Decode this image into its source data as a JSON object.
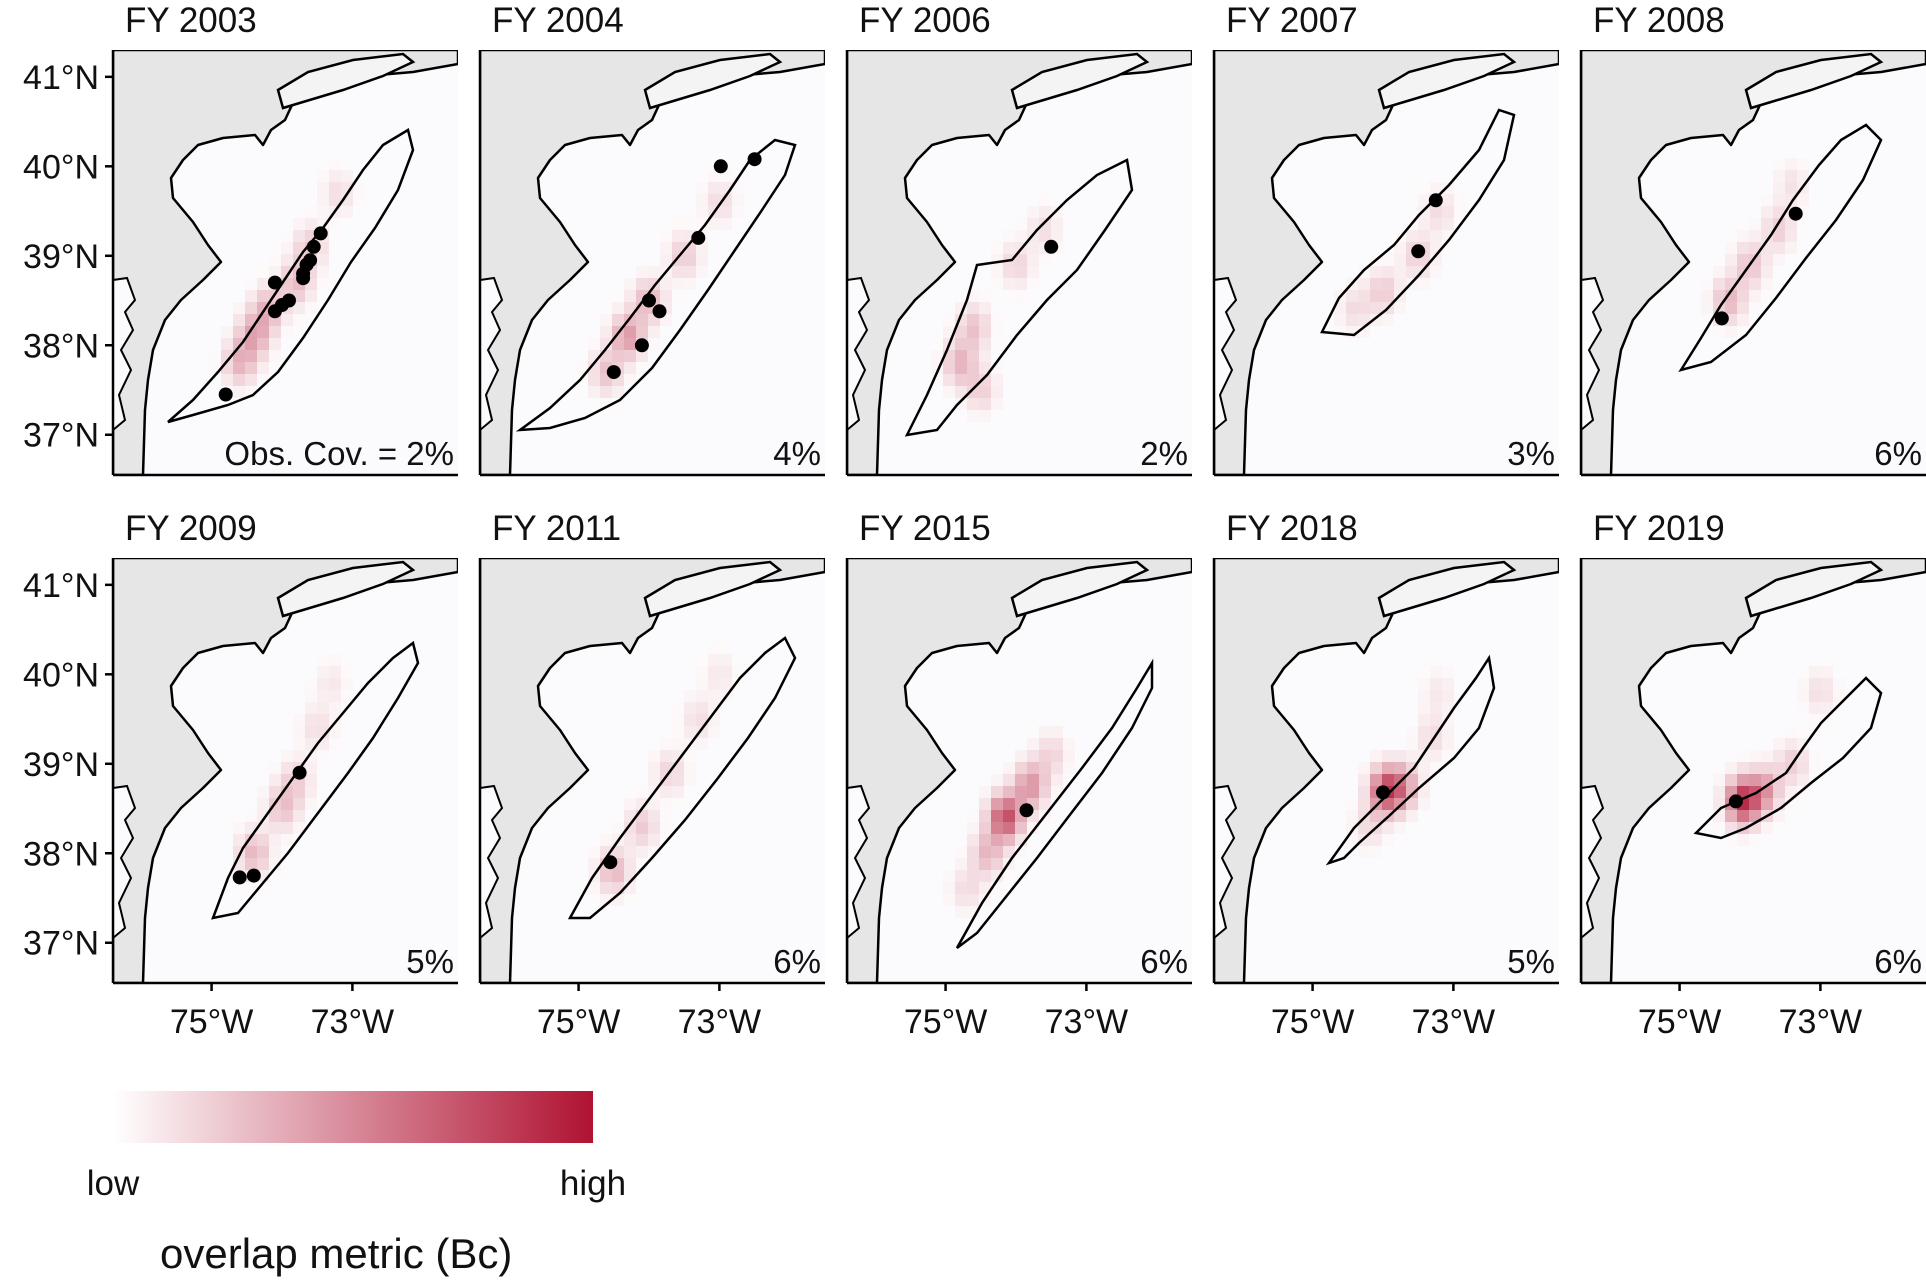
{
  "figure": {
    "panels": [
      {
        "title": "FY 2003",
        "coverage": "Obs. Cov. = 2%",
        "obs_points": [
          [
            -74.8,
            37.45
          ],
          [
            -74.1,
            38.7
          ],
          [
            -74.0,
            38.45
          ],
          [
            -74.1,
            38.38
          ],
          [
            -73.9,
            38.5
          ],
          [
            -73.7,
            38.8
          ],
          [
            -73.6,
            38.95
          ],
          [
            -73.55,
            39.1
          ],
          [
            -73.45,
            39.25
          ],
          [
            -73.7,
            38.75
          ],
          [
            -73.65,
            38.9
          ]
        ],
        "hotspots": [
          [
            -74.4,
            38.1,
            0.35
          ],
          [
            -74.2,
            38.4,
            0.3
          ],
          [
            -74.6,
            37.8,
            0.3
          ],
          [
            -73.8,
            38.7,
            0.28
          ],
          [
            -73.6,
            39.1,
            0.22
          ],
          [
            -73.2,
            39.7,
            0.14
          ]
        ]
      },
      {
        "title": "FY 2004",
        "coverage": "4%",
        "obs_points": [
          [
            -72.98,
            40.0
          ],
          [
            -72.5,
            40.08
          ],
          [
            -73.3,
            39.2
          ],
          [
            -74.0,
            38.5
          ],
          [
            -73.85,
            38.38
          ],
          [
            -74.1,
            38.0
          ],
          [
            -74.5,
            37.7
          ]
        ],
        "hotspots": [
          [
            -74.3,
            38.1,
            0.42
          ],
          [
            -74.0,
            38.5,
            0.3
          ],
          [
            -73.5,
            39.0,
            0.22
          ],
          [
            -73.0,
            39.6,
            0.15
          ],
          [
            -74.6,
            37.7,
            0.25
          ]
        ]
      },
      {
        "title": "FY 2006",
        "coverage": "2%",
        "obs_points": [
          [
            -73.5,
            39.1
          ]
        ],
        "hotspots": [
          [
            -74.8,
            37.8,
            0.3
          ],
          [
            -74.6,
            38.2,
            0.25
          ],
          [
            -74.0,
            38.9,
            0.18
          ],
          [
            -73.6,
            39.3,
            0.14
          ],
          [
            -74.5,
            37.5,
            0.2
          ]
        ]
      },
      {
        "title": "FY 2007",
        "coverage": "3%",
        "obs_points": [
          [
            -73.25,
            39.62
          ],
          [
            -73.5,
            39.05
          ]
        ],
        "hotspots": [
          [
            -74.0,
            38.6,
            0.22
          ],
          [
            -73.5,
            39.0,
            0.2
          ],
          [
            -73.2,
            39.5,
            0.15
          ],
          [
            -74.4,
            38.4,
            0.15
          ]
        ]
      },
      {
        "title": "FY 2008",
        "coverage": "6%",
        "obs_points": [
          [
            -73.35,
            39.47
          ],
          [
            -74.4,
            38.3
          ]
        ],
        "hotspots": [
          [
            -74.3,
            38.5,
            0.3
          ],
          [
            -74.0,
            38.9,
            0.25
          ],
          [
            -73.6,
            39.3,
            0.2
          ],
          [
            -73.4,
            39.8,
            0.12
          ]
        ]
      },
      {
        "title": "FY 2009",
        "coverage": "5%",
        "obs_points": [
          [
            -73.75,
            38.9
          ],
          [
            -74.6,
            37.73
          ],
          [
            -74.4,
            37.75
          ]
        ],
        "hotspots": [
          [
            -74.4,
            38.0,
            0.3
          ],
          [
            -74.0,
            38.5,
            0.25
          ],
          [
            -73.8,
            38.8,
            0.2
          ],
          [
            -73.5,
            39.4,
            0.14
          ],
          [
            -73.3,
            39.9,
            0.1
          ]
        ]
      },
      {
        "title": "FY 2011",
        "coverage": "6%",
        "obs_points": [
          [
            -74.55,
            37.9
          ]
        ],
        "hotspots": [
          [
            -74.5,
            37.8,
            0.3
          ],
          [
            -74.1,
            38.3,
            0.22
          ],
          [
            -73.7,
            38.9,
            0.18
          ],
          [
            -73.3,
            39.5,
            0.14
          ],
          [
            -73.0,
            40.0,
            0.1
          ]
        ]
      },
      {
        "title": "FY 2015",
        "coverage": "6%",
        "obs_points": [
          [
            -73.85,
            38.48
          ]
        ],
        "hotspots": [
          [
            -74.15,
            38.4,
            0.75
          ],
          [
            -73.8,
            38.75,
            0.45
          ],
          [
            -74.4,
            38.0,
            0.3
          ],
          [
            -73.5,
            39.1,
            0.18
          ],
          [
            -74.7,
            37.6,
            0.15
          ]
        ]
      },
      {
        "title": "FY 2018",
        "coverage": "5%",
        "obs_points": [
          [
            -74.0,
            38.68
          ]
        ],
        "hotspots": [
          [
            -73.95,
            38.7,
            0.75
          ],
          [
            -73.7,
            38.75,
            0.35
          ],
          [
            -73.3,
            39.3,
            0.15
          ],
          [
            -74.2,
            38.3,
            0.15
          ],
          [
            -73.2,
            39.8,
            0.1
          ]
        ]
      },
      {
        "title": "FY 2019",
        "coverage": "6%",
        "obs_points": [
          [
            -74.2,
            38.58
          ]
        ],
        "hotspots": [
          [
            -74.1,
            38.58,
            0.85
          ],
          [
            -73.8,
            38.7,
            0.4
          ],
          [
            -73.4,
            39.0,
            0.2
          ],
          [
            -73.0,
            39.8,
            0.14
          ]
        ]
      }
    ],
    "y_ticks": [
      "41°N",
      "40°N",
      "39°N",
      "38°N",
      "37°N"
    ],
    "y_tick_values": [
      41,
      40,
      39,
      38,
      37
    ],
    "x_ticks": [
      "75°W",
      "73°W"
    ],
    "x_tick_values": [
      -75,
      -73
    ],
    "lon_range": [
      -76.4,
      -71.5
    ],
    "lat_range": [
      36.55,
      41.3
    ],
    "legend": {
      "low_label": "low",
      "high_label": "high",
      "title": "overlap metric (Bc)",
      "color_low": "#ffffff",
      "color_high": "#b01232"
    },
    "colors": {
      "land": "#e6e6e6",
      "water": "#fbfbfd",
      "outline": "#000000",
      "point": "#000000"
    }
  }
}
